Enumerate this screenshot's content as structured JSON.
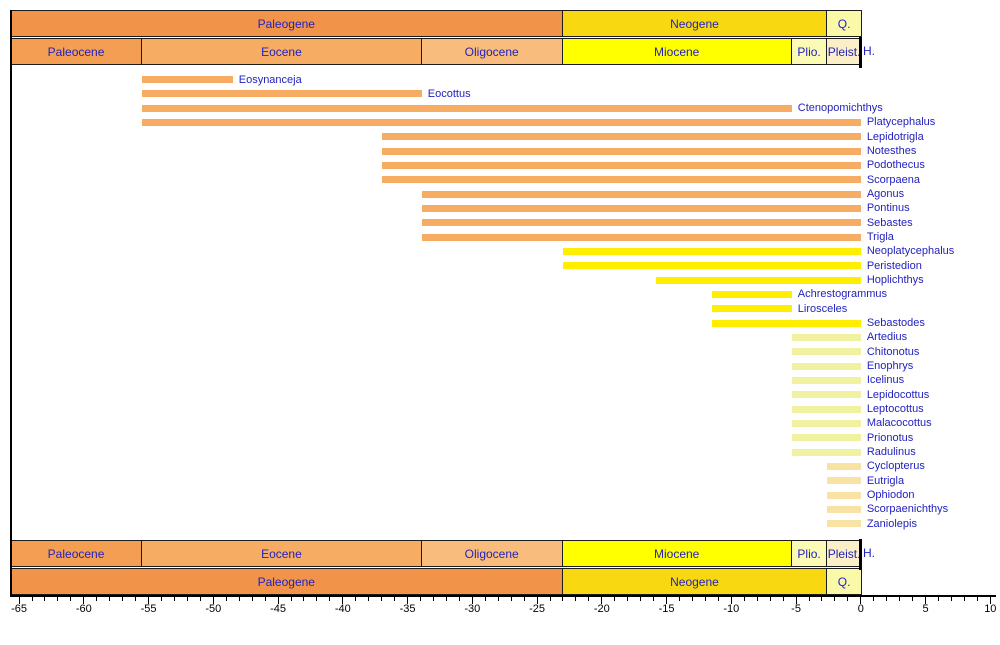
{
  "page": {
    "background": "#FFFFFF"
  },
  "palette": {
    "label_text": "#2222BE",
    "axis": "#000000",
    "bar_eocene_orange": "#F6AC63",
    "bar_miocene_yellow": "#FFEE00",
    "bar_pliocene_pale": "#F0F1A1",
    "bar_pleistocene_cream": "#F8E3A5"
  },
  "chart_data": {
    "type": "bar",
    "subtype": "taxon-stratigraphic-range-chart",
    "title": "",
    "xlabel": "",
    "ylabel": "",
    "xlim": [
      -65.7,
      10.35
    ],
    "x_major_ticks": [
      -65,
      -60,
      -55,
      -50,
      -45,
      -40,
      -35,
      -30,
      -25,
      -20,
      -15,
      -10,
      -5,
      0,
      5,
      10
    ],
    "x_minor_tick_step": 1,
    "grid": false,
    "legend": false,
    "timescale": {
      "holocene_label": "H.",
      "periods": [
        {
          "label": "Paleogene",
          "start": -65.7,
          "end": -23.03,
          "color": "#F2934A"
        },
        {
          "label": "Neogene",
          "start": -23.03,
          "end": -2.58,
          "color": "#F8D911"
        },
        {
          "label": "Q.",
          "start": -2.58,
          "end": 0.08,
          "color": "#F9F9A8"
        }
      ],
      "epochs": [
        {
          "label": "Paleocene",
          "start": -65.7,
          "end": -55.5,
          "color": "#F49E54"
        },
        {
          "label": "Eocene",
          "start": -55.5,
          "end": -33.9,
          "color": "#F6AC63"
        },
        {
          "label": "Oligocene",
          "start": -33.9,
          "end": -23.03,
          "color": "#F8BD7D"
        },
        {
          "label": "Miocene",
          "start": -23.03,
          "end": -5.33,
          "color": "#FFFF00"
        },
        {
          "label": "Plio.",
          "start": -5.33,
          "end": -2.58,
          "color": "#FBFBB5"
        },
        {
          "label": "Pleist.",
          "start": -2.58,
          "end": 0.08,
          "color": "#FAEFC8"
        }
      ]
    },
    "series": [
      {
        "name": "Eosynanceja",
        "start": -55.5,
        "end": -48.5,
        "color": "#F6AC63"
      },
      {
        "name": "Eocottus",
        "start": -55.5,
        "end": -33.9,
        "color": "#F6AC63"
      },
      {
        "name": "Ctenopomichthys",
        "start": -55.5,
        "end": -5.33,
        "color": "#F6AC63"
      },
      {
        "name": "Platycephalus",
        "start": -55.5,
        "end": 0,
        "color": "#F6AC63"
      },
      {
        "name": "Lepidotrigla",
        "start": -37.0,
        "end": 0,
        "color": "#F6AC63"
      },
      {
        "name": "Notesthes",
        "start": -37.0,
        "end": 0,
        "color": "#F6AC63"
      },
      {
        "name": "Podothecus",
        "start": -37.0,
        "end": 0,
        "color": "#F6AC63"
      },
      {
        "name": "Scorpaena",
        "start": -37.0,
        "end": 0,
        "color": "#F6AC63"
      },
      {
        "name": "Agonus",
        "start": -33.9,
        "end": 0,
        "color": "#F6AC63"
      },
      {
        "name": "Pontinus",
        "start": -33.9,
        "end": 0,
        "color": "#F6AC63"
      },
      {
        "name": "Sebastes",
        "start": -33.9,
        "end": 0,
        "color": "#F6AC63"
      },
      {
        "name": "Trigla",
        "start": -33.9,
        "end": 0,
        "color": "#F6AC63"
      },
      {
        "name": "Neoplatycephalus",
        "start": -23.03,
        "end": 0,
        "color": "#FFEE00"
      },
      {
        "name": "Peristedion",
        "start": -23.03,
        "end": 0,
        "color": "#FFEE00"
      },
      {
        "name": "Hoplichthys",
        "start": -15.8,
        "end": 0,
        "color": "#FFEE00"
      },
      {
        "name": "Achrestogrammus",
        "start": -11.5,
        "end": -5.33,
        "color": "#FFEE00"
      },
      {
        "name": "Lirosceles",
        "start": -11.5,
        "end": -5.33,
        "color": "#FFEE00"
      },
      {
        "name": "Sebastodes",
        "start": -11.5,
        "end": 0,
        "color": "#FFEE00"
      },
      {
        "name": "Artedius",
        "start": -5.33,
        "end": 0,
        "color": "#F0F1A1"
      },
      {
        "name": "Chitonotus",
        "start": -5.33,
        "end": 0,
        "color": "#F0F1A1"
      },
      {
        "name": "Enophrys",
        "start": -5.33,
        "end": 0,
        "color": "#F0F1A1"
      },
      {
        "name": "Icelinus",
        "start": -5.33,
        "end": 0,
        "color": "#F0F1A1"
      },
      {
        "name": "Lepidocottus",
        "start": -5.33,
        "end": 0,
        "color": "#F0F1A1"
      },
      {
        "name": "Leptocottus",
        "start": -5.33,
        "end": 0,
        "color": "#F0F1A1"
      },
      {
        "name": "Malacocottus",
        "start": -5.33,
        "end": 0,
        "color": "#F0F1A1"
      },
      {
        "name": "Prionotus",
        "start": -5.33,
        "end": 0,
        "color": "#F0F1A1"
      },
      {
        "name": "Radulinus",
        "start": -5.33,
        "end": 0,
        "color": "#F0F1A1"
      },
      {
        "name": "Cyclopterus",
        "start": -2.58,
        "end": 0,
        "color": "#F8E3A5"
      },
      {
        "name": "Eutrigla",
        "start": -2.58,
        "end": 0,
        "color": "#F8E3A5"
      },
      {
        "name": "Ophiodon",
        "start": -2.58,
        "end": 0,
        "color": "#F8E3A5"
      },
      {
        "name": "Scorpaenichthys",
        "start": -2.58,
        "end": 0,
        "color": "#F8E3A5"
      },
      {
        "name": "Zaniolepis",
        "start": -2.58,
        "end": 0,
        "color": "#F8E3A5"
      }
    ]
  }
}
